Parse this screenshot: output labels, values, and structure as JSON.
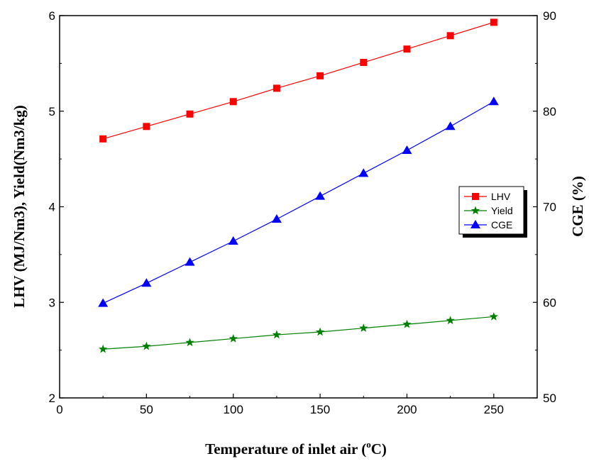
{
  "chart_data": {
    "type": "line",
    "x": [
      25,
      50,
      75,
      100,
      125,
      150,
      175,
      200,
      225,
      250
    ],
    "xlim": [
      0,
      275
    ],
    "x_ticks": [
      "0",
      "50",
      "100",
      "150",
      "200",
      "250"
    ],
    "x_tick_values": [
      0,
      50,
      100,
      150,
      200,
      250
    ],
    "xlabel_main": "Temperature of inlet air (",
    "xlabel_sup": "o",
    "xlabel_tail": "C)",
    "ylabel_left": "LHV (MJ/Nm3), Yield(Nm3/kg)",
    "ylim_left": [
      2,
      6
    ],
    "y_ticks_left": [
      "2",
      "3",
      "4",
      "5",
      "6"
    ],
    "y_tick_values_left": [
      2,
      3,
      4,
      5,
      6
    ],
    "ylabel_right": "CGE (%)",
    "ylim_right": [
      50,
      90
    ],
    "y_ticks_right": [
      "50",
      "60",
      "70",
      "80",
      "90"
    ],
    "y_tick_values_right": [
      50,
      60,
      70,
      80,
      90
    ],
    "legend_position": "right",
    "grid": false,
    "series": [
      {
        "name": "LHV",
        "axis": "left",
        "color": "#ff0000",
        "marker": "square",
        "values": [
          4.71,
          4.84,
          4.97,
          5.1,
          5.24,
          5.37,
          5.51,
          5.65,
          5.79,
          5.93
        ]
      },
      {
        "name": "Yield",
        "axis": "left",
        "color": "#008000",
        "marker": "star",
        "values": [
          2.51,
          2.54,
          2.58,
          2.62,
          2.66,
          2.69,
          2.73,
          2.77,
          2.81,
          2.85
        ]
      },
      {
        "name": "CGE",
        "axis": "right",
        "color": "#0000ff",
        "marker": "triangle",
        "values": [
          59.9,
          62.0,
          64.2,
          66.4,
          68.7,
          71.1,
          73.5,
          75.9,
          78.4,
          81.0
        ]
      }
    ]
  }
}
